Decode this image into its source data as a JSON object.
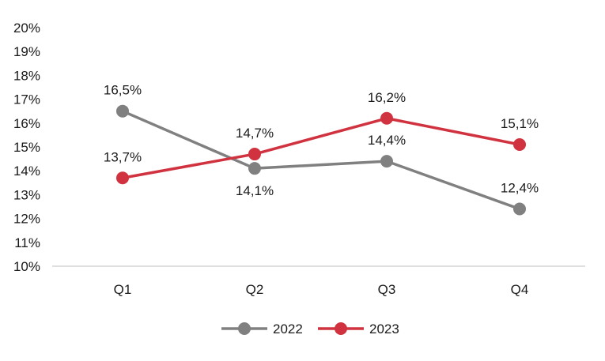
{
  "chart_data": {
    "type": "line",
    "title": "",
    "xlabel": "",
    "ylabel": "",
    "categories": [
      "Q1",
      "Q2",
      "Q3",
      "Q4"
    ],
    "ylim": [
      10,
      20
    ],
    "yticks": [
      "10%",
      "11%",
      "12%",
      "13%",
      "14%",
      "15%",
      "16%",
      "17%",
      "18%",
      "19%",
      "20%"
    ],
    "grid": false,
    "legend_position": "bottom-center",
    "series": [
      {
        "name": "2022",
        "color": "#808080",
        "values": [
          16.5,
          14.1,
          14.4,
          12.4
        ],
        "labels": [
          "16,5%",
          "14,1%",
          "14,4%",
          "12,4%"
        ]
      },
      {
        "name": "2023",
        "color": "#d0333f",
        "values": [
          13.7,
          14.7,
          16.2,
          15.1
        ],
        "labels": [
          "13,7%",
          "14,7%",
          "16,2%",
          "15,1%"
        ]
      }
    ]
  }
}
